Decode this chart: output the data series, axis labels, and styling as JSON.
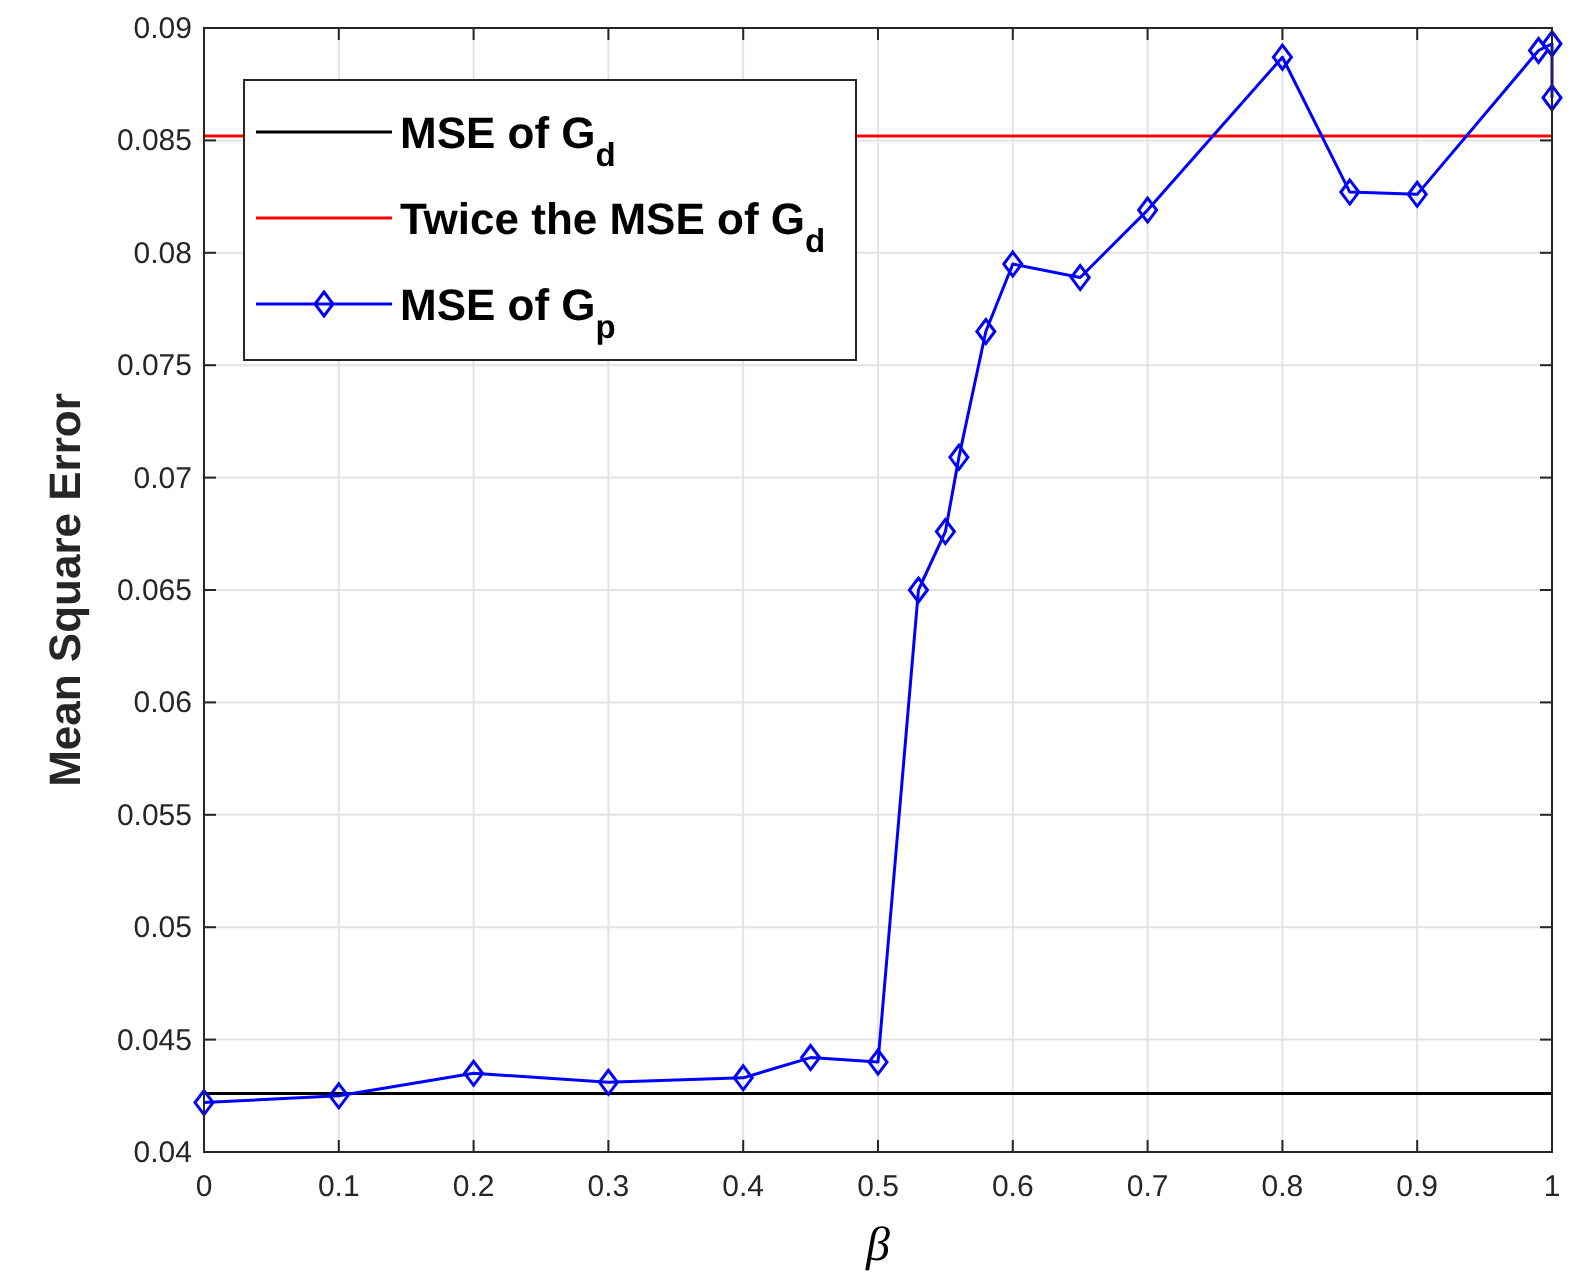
{
  "chart_data": {
    "type": "line",
    "xlabel": "β",
    "ylabel": "Mean Square Error",
    "xlim": [
      0,
      1
    ],
    "xticks": [
      0,
      0.1,
      0.2,
      0.3,
      0.4,
      0.5,
      0.6,
      0.7,
      0.8,
      0.9,
      1
    ],
    "ylim": [
      0.04,
      0.09
    ],
    "yticks": [
      0.04,
      0.045,
      0.05,
      0.055,
      0.06,
      0.065,
      0.07,
      0.075,
      0.08,
      0.085,
      0.09
    ],
    "grid": true,
    "legend": "top left",
    "line_style": "solid",
    "series": [
      {
        "name": "MSE of G$_{d}$",
        "color": "#000000",
        "marker": "none",
        "x": [
          0,
          1
        ],
        "values": [
          0.0426,
          0.0426
        ]
      },
      {
        "name": "Twice the MSE of G$_{d}$",
        "color": "#ff0000",
        "marker": "none",
        "x": [
          0,
          1
        ],
        "values": [
          0.0852,
          0.0852
        ]
      },
      {
        "name": "MSE of G$_{p}$",
        "color": "#0000ff",
        "marker": "diamond",
        "x": [
          0,
          0.1,
          0.2,
          0.3,
          0.4,
          0.45,
          0.5,
          0.53,
          0.55,
          0.56,
          0.58,
          0.6,
          0.65,
          0.7,
          0.8,
          0.85,
          0.9,
          0.99,
          1,
          1
        ],
        "values": [
          0.0422,
          0.0425,
          0.0435,
          0.0431,
          0.0433,
          0.0442,
          0.044,
          0.065,
          0.0676,
          0.0709,
          0.0765,
          0.0795,
          0.0789,
          0.0819,
          0.0887,
          0.0827,
          0.0826,
          0.089,
          0.0893,
          0.0869
        ]
      }
    ]
  }
}
